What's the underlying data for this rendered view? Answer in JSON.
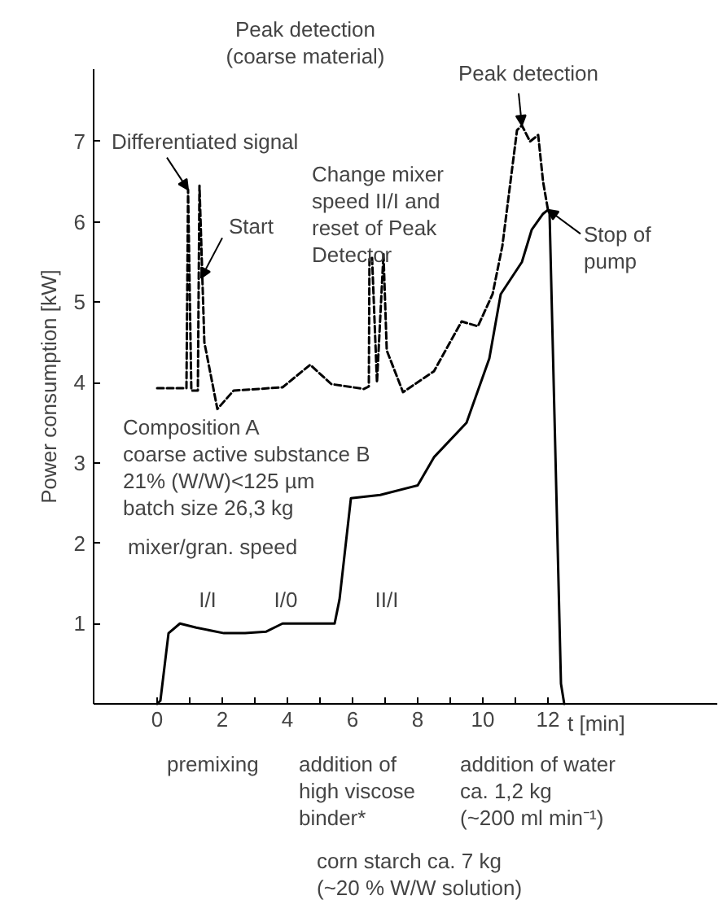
{
  "chart_data": {
    "type": "line",
    "ylabel": "Power consumption [kW]",
    "xlabel": "t [min]",
    "xlim": [
      -1.95,
      17.2
    ],
    "ylim": [
      0,
      7.9
    ],
    "xticks": [
      0,
      {
        "value": 1,
        "label": null
      },
      2,
      {
        "value": 3,
        "label": null
      },
      4,
      {
        "value": 5,
        "label": null
      },
      6,
      {
        "value": 7,
        "label": null
      },
      8,
      {
        "value": 9,
        "label": null
      },
      10,
      {
        "value": 11,
        "label": null
      },
      12
    ],
    "yticks": [
      1,
      2,
      3,
      4,
      5,
      6,
      7
    ],
    "grid": false,
    "series": [
      {
        "color": "#000000",
        "line_style": "solid",
        "x": [
          0,
          0.1,
          0.35,
          0.7,
          1.2,
          2.05,
          2.7,
          3.35,
          3.85,
          5.45,
          5.6,
          5.95,
          6.85,
          8.0,
          8.5,
          9.5,
          10.2,
          10.55,
          11.2,
          11.5,
          11.85,
          12.0,
          12.05,
          12.4,
          12.5
        ],
        "values": [
          0,
          0.04,
          0.88,
          1.0,
          0.95,
          0.88,
          0.88,
          0.9,
          1.0,
          1.0,
          1.3,
          2.56,
          2.6,
          2.72,
          3.07,
          3.5,
          4.3,
          5.1,
          5.5,
          5.9,
          6.1,
          6.15,
          6.1,
          0.25,
          0
        ]
      },
      {
        "color": "#000000",
        "line_style": "dashed",
        "x": [
          0,
          0.9,
          0.95,
          1.05,
          1.25,
          1.3,
          1.45,
          1.85,
          2.35,
          3.85,
          4.7,
          5.35,
          6.35,
          6.5,
          6.52,
          6.6,
          6.75,
          6.95,
          7.05,
          7.55,
          8.5,
          9.35,
          9.85,
          10.3,
          10.6,
          11.05,
          11.2,
          11.45,
          11.7,
          11.85,
          12.0
        ],
        "values": [
          3.93,
          3.93,
          6.4,
          3.9,
          3.9,
          6.45,
          4.5,
          3.67,
          3.9,
          3.94,
          4.22,
          3.98,
          3.92,
          3.95,
          5.55,
          5.55,
          4.0,
          5.6,
          4.4,
          3.88,
          4.14,
          4.76,
          4.7,
          5.1,
          5.7,
          7.14,
          7.2,
          7.0,
          7.08,
          6.5,
          6.15
        ]
      }
    ],
    "annotations": [
      "Peak detection\n(coarse material)",
      {
        "text": "Differentiated signal",
        "x": 0.95,
        "y": 6.4
      },
      {
        "text": "Start",
        "x": 1.35,
        "y": 5.3
      },
      "Change mixer\nspeed II/I and\nreset of Peak\nDetector",
      {
        "text": "Peak detection",
        "x": 11.2,
        "y": 7.2
      },
      {
        "text": "Stop of\npump",
        "x": 12.0,
        "y": 6.15
      },
      "Composition A\ncoarse active substance B\n21% (W/W)<125 µm\nbatch size 26,3 kg",
      "mixer/gran. speed",
      "I/I",
      "I/0",
      "II/I",
      "premixing",
      "addition of\nhigh viscose\nbinder*",
      "addition of water\nca. 1,2 kg\n(~200 ml min⁻¹)",
      "corn starch ca. 7 kg\n(~20 % W/W solution)"
    ]
  }
}
